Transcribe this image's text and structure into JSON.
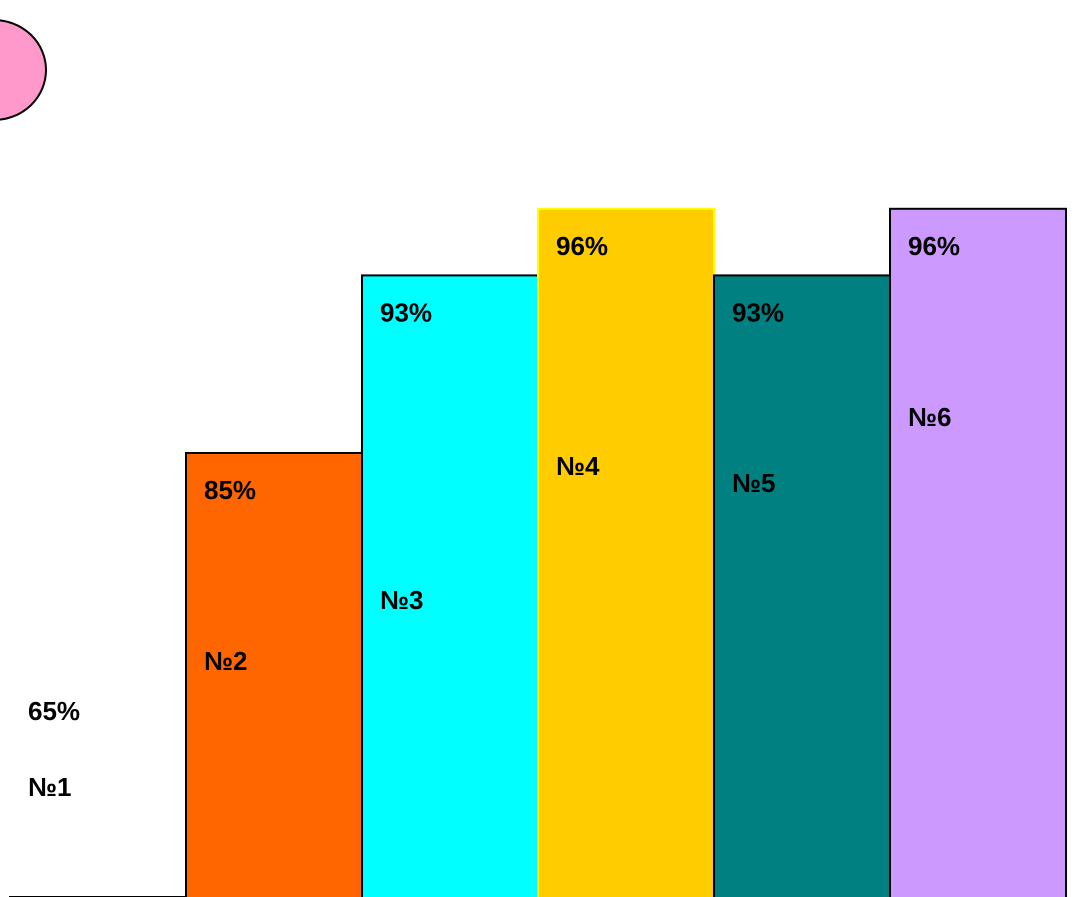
{
  "chart_data": {
    "type": "bar",
    "categories": [
      "№1",
      "№2",
      "№3",
      "№4",
      "№5",
      "№6"
    ],
    "values": [
      65,
      85,
      93,
      96,
      93,
      96
    ],
    "value_labels": [
      "65%",
      "85%",
      "93%",
      "96%",
      "93%",
      "96%"
    ],
    "colors": [
      "#00ff00",
      "#ff6600",
      "#00ffff",
      "#ffcc00",
      "#008080",
      "#cc99ff"
    ],
    "border_colors": [
      "#000000",
      "#000000",
      "#000000",
      "#ffff00",
      "#000000",
      "#000000"
    ],
    "title": "",
    "xlabel": "",
    "ylabel": "",
    "legend": false,
    "grid": false
  },
  "decoration": {
    "color": "#ff99cc"
  }
}
